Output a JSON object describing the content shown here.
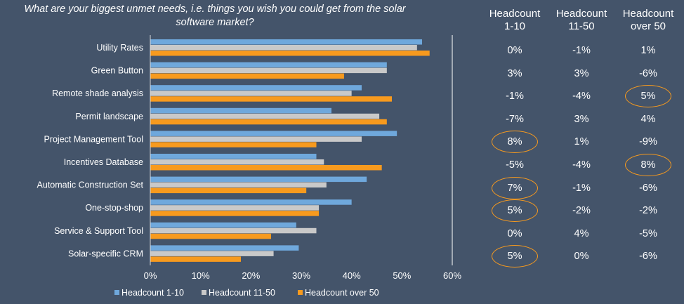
{
  "chart_data": {
    "type": "bar",
    "orientation": "horizontal",
    "title": "What are your biggest unmet needs, i.e. things you wish you could get from the solar software market?",
    "categories": [
      "Utility Rates",
      "Green Button",
      "Remote shade analysis",
      "Permit landscape",
      "Project Management Tool",
      "Incentives Database",
      "Automatic Construction Set",
      "One-stop-shop",
      "Service & Support Tool",
      "Solar-specific CRM"
    ],
    "series": [
      {
        "name": "Headcount 1-10",
        "color": "#6fa8dc",
        "values": [
          0.54,
          0.47,
          0.42,
          0.36,
          0.49,
          0.33,
          0.43,
          0.4,
          0.29,
          0.295
        ]
      },
      {
        "name": "Headcount 11-50",
        "color": "#c9c9c9",
        "values": [
          0.53,
          0.47,
          0.4,
          0.455,
          0.42,
          0.345,
          0.35,
          0.335,
          0.33,
          0.245
        ]
      },
      {
        "name": "Headcount over 50",
        "color": "#f79a1e",
        "values": [
          0.555,
          0.385,
          0.48,
          0.47,
          0.33,
          0.46,
          0.31,
          0.335,
          0.24,
          0.18
        ]
      }
    ],
    "xlim": [
      0,
      0.6
    ],
    "xticks": [
      "0%",
      "10%",
      "20%",
      "30%",
      "40%",
      "50%",
      "60%"
    ],
    "grid": "vertical line at 60%",
    "legend": "bottom"
  },
  "difference_table": {
    "headers": [
      "Headcount\n1-10",
      "Headcount\n11-50",
      "Headcount\nover 50"
    ],
    "rows": [
      [
        "0%",
        "-1%",
        "1%"
      ],
      [
        "3%",
        "3%",
        "-6%"
      ],
      [
        "-1%",
        "-4%",
        "5%"
      ],
      [
        "-7%",
        "3%",
        "4%"
      ],
      [
        "8%",
        "1%",
        "-9%"
      ],
      [
        "-5%",
        "-4%",
        "8%"
      ],
      [
        "7%",
        "-1%",
        "-6%"
      ],
      [
        "5%",
        "-2%",
        "-2%"
      ],
      [
        "0%",
        "4%",
        "-5%"
      ],
      [
        "5%",
        "0%",
        "-6%"
      ]
    ],
    "highlighted": [
      [
        2,
        2
      ],
      [
        4,
        0
      ],
      [
        5,
        2
      ],
      [
        6,
        0
      ],
      [
        7,
        0
      ],
      [
        9,
        0
      ]
    ],
    "highlight_color": "#f79a1e"
  }
}
